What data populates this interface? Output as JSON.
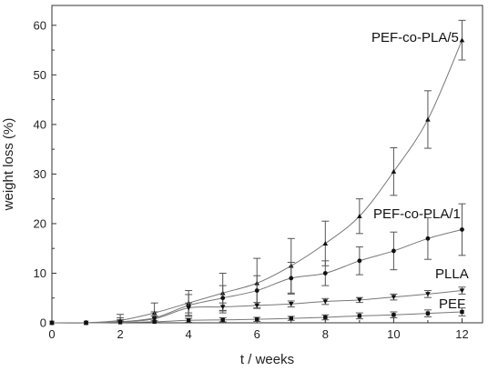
{
  "chart_data": {
    "type": "line",
    "xlabel": "t / weeks",
    "ylabel": "weight loss (%)",
    "xlim": [
      0,
      12.6
    ],
    "ylim": [
      0,
      64
    ],
    "x_ticks": [
      0,
      2,
      4,
      6,
      8,
      10,
      12
    ],
    "y_ticks": [
      0,
      10,
      20,
      30,
      40,
      50,
      60
    ],
    "grid": false,
    "legend": "inline labels",
    "series": [
      {
        "name": "PEF-co-PLA/5",
        "marker": "triangle-up",
        "color": "#222222",
        "x": [
          0,
          1,
          2,
          3,
          4,
          5,
          6,
          7,
          8,
          9,
          10,
          11,
          12
        ],
        "y": [
          0,
          0,
          0.5,
          2,
          4,
          6,
          8,
          11.5,
          16,
          21.5,
          30.5,
          41,
          57
        ],
        "err": [
          0,
          0,
          1.2,
          2,
          2.5,
          4,
          5,
          5.5,
          4.5,
          3.5,
          4.8,
          5.8,
          4
        ]
      },
      {
        "name": "PEF-co-PLA/1",
        "marker": "circle",
        "color": "#222222",
        "x": [
          0,
          1,
          2,
          3,
          4,
          5,
          6,
          7,
          8,
          9,
          10,
          11,
          12
        ],
        "y": [
          0,
          0,
          0.2,
          1,
          3.5,
          5,
          6.5,
          9,
          10,
          12.5,
          14.5,
          17,
          18.8
        ],
        "err": [
          0,
          0,
          0.8,
          1.2,
          2.2,
          2.5,
          3,
          3.2,
          2.5,
          2.8,
          3.8,
          4.2,
          5.2
        ]
      },
      {
        "name": "PLLA",
        "marker": "triangle-down",
        "color": "#222222",
        "x": [
          0,
          1,
          2,
          3,
          4,
          5,
          6,
          7,
          8,
          9,
          10,
          11,
          12
        ],
        "y": [
          0,
          0,
          0.2,
          0.8,
          3,
          3.2,
          3.5,
          3.8,
          4.3,
          4.6,
          5.2,
          5.8,
          6.5
        ],
        "err": [
          0,
          0,
          0.4,
          0.6,
          1,
          0.8,
          0.6,
          0.6,
          0.6,
          0.5,
          0.6,
          0.7,
          0.7
        ]
      },
      {
        "name": "PEF",
        "marker": "square",
        "color": "#222222",
        "x": [
          0,
          1,
          2,
          3,
          4,
          5,
          6,
          7,
          8,
          9,
          10,
          11,
          12
        ],
        "y": [
          0,
          0,
          0.1,
          0.2,
          0.5,
          0.6,
          0.7,
          0.9,
          1.1,
          1.4,
          1.6,
          1.9,
          2.2
        ],
        "err": [
          0,
          0,
          0.2,
          0.2,
          0.4,
          0.4,
          0.4,
          0.4,
          0.5,
          0.6,
          0.6,
          0.7,
          0.8
        ]
      }
    ]
  }
}
